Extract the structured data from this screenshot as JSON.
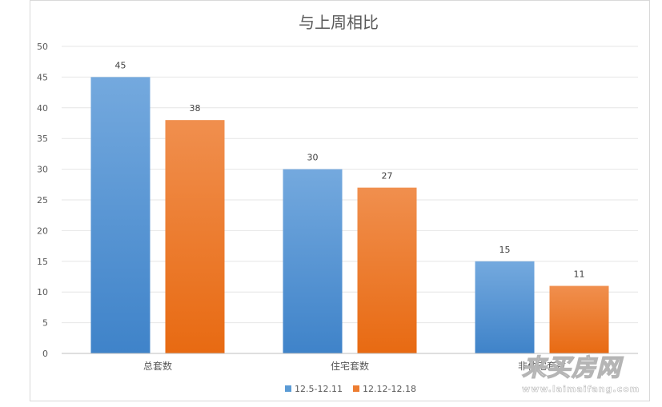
{
  "chart_data": {
    "type": "bar",
    "title": "与上周相比",
    "categories": [
      "总套数",
      "住宅套数",
      "非住宅套数"
    ],
    "series": [
      {
        "name": "12.5-12.11",
        "color": "#5b9bd5",
        "values": [
          45,
          30,
          15
        ]
      },
      {
        "name": "12.12-12.18",
        "color": "#ed7d31",
        "values": [
          38,
          27,
          11
        ]
      }
    ],
    "ylim": [
      0,
      50
    ],
    "yticks": [
      0,
      5,
      10,
      15,
      20,
      25,
      30,
      35,
      40,
      45,
      50
    ],
    "grid": true,
    "legend_position": "bottom"
  },
  "watermark": {
    "text": "来买房网",
    "url": "www.laimaifang.com"
  }
}
